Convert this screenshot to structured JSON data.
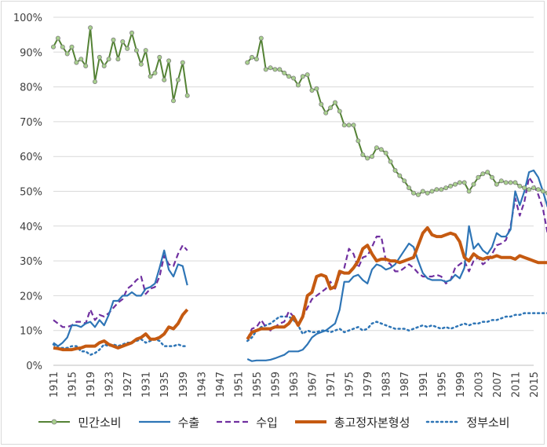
{
  "chart_data": {
    "type": "line",
    "ylim": [
      0,
      1.0
    ],
    "y_ticks": [
      "0%",
      "10%",
      "20%",
      "30%",
      "40%",
      "50%",
      "60%",
      "70%",
      "80%",
      "90%",
      "100%"
    ],
    "x_ticks": [
      "1911",
      "1915",
      "1919",
      "1923",
      "1927",
      "1931",
      "1935",
      "1939",
      "1943",
      "1947",
      "1951",
      "1955",
      "1959",
      "1963",
      "1967",
      "1971",
      "1975",
      "1979",
      "1983",
      "1987",
      "1991",
      "1995",
      "1999",
      "2003",
      "2007",
      "2011",
      "2015"
    ],
    "xlim": [
      1911,
      2015
    ],
    "grid": true,
    "legend_position": "bottom",
    "series": [
      {
        "name": "민간소비",
        "color": "#548235",
        "style": "solid-markers",
        "segments": [
          {
            "x0": 1911,
            "values": [
              0.915,
              0.94,
              0.915,
              0.895,
              0.915,
              0.87,
              0.88,
              0.86,
              0.97,
              0.815,
              0.885,
              0.86,
              0.88,
              0.935,
              0.88,
              0.93,
              0.91,
              0.955,
              0.905,
              0.865,
              0.905,
              0.83,
              0.84,
              0.885,
              0.82,
              0.875,
              0.76,
              0.82,
              0.87,
              0.775
            ]
          },
          {
            "x0": 1953,
            "values": [
              0.87,
              0.885,
              0.88,
              0.94,
              0.85,
              0.855,
              0.85,
              0.85,
              0.84,
              0.83,
              0.825,
              0.805,
              0.83,
              0.835,
              0.79,
              0.795,
              0.75,
              0.725,
              0.74,
              0.755,
              0.73,
              0.69,
              0.69,
              0.69,
              0.645,
              0.605,
              0.595,
              0.6,
              0.625,
              0.62,
              0.61,
              0.585,
              0.56,
              0.545,
              0.53,
              0.51,
              0.495,
              0.49,
              0.5,
              0.495,
              0.5,
              0.505,
              0.505,
              0.51,
              0.515,
              0.52,
              0.525,
              0.525,
              0.5,
              0.52,
              0.54,
              0.55,
              0.555,
              0.54,
              0.52,
              0.53,
              0.525,
              0.525,
              0.525,
              0.515,
              0.51,
              0.505,
              0.51,
              0.505,
              0.5,
              0.495
            ]
          }
        ]
      },
      {
        "name": "수출",
        "color": "#2e75b6",
        "style": "solid",
        "segments": [
          {
            "x0": 1911,
            "values": [
              0.065,
              0.055,
              0.065,
              0.08,
              0.115,
              0.115,
              0.11,
              0.12,
              0.125,
              0.11,
              0.13,
              0.115,
              0.145,
              0.185,
              0.185,
              0.2,
              0.2,
              0.21,
              0.2,
              0.2,
              0.22,
              0.225,
              0.235,
              0.28,
              0.33,
              0.275,
              0.255,
              0.29,
              0.285,
              0.23
            ]
          },
          {
            "x0": 1953,
            "values": [
              0.018,
              0.012,
              0.014,
              0.014,
              0.014,
              0.016,
              0.02,
              0.025,
              0.03,
              0.04,
              0.04,
              0.04,
              0.045,
              0.06,
              0.08,
              0.09,
              0.095,
              0.1,
              0.11,
              0.12,
              0.16,
              0.24,
              0.24,
              0.255,
              0.26,
              0.245,
              0.235,
              0.275,
              0.29,
              0.285,
              0.275,
              0.28,
              0.29,
              0.31,
              0.33,
              0.35,
              0.34,
              0.3,
              0.265,
              0.25,
              0.245,
              0.245,
              0.245,
              0.24,
              0.245,
              0.26,
              0.25,
              0.28,
              0.4,
              0.335,
              0.35,
              0.33,
              0.32,
              0.34,
              0.38,
              0.37,
              0.37,
              0.39,
              0.5,
              0.46,
              0.5,
              0.555,
              0.56,
              0.54,
              0.5,
              0.455
            ]
          }
        ]
      },
      {
        "name": "수입",
        "color": "#7030a0",
        "style": "dashed",
        "segments": [
          {
            "x0": 1911,
            "values": [
              0.13,
              0.12,
              0.11,
              0.11,
              0.115,
              0.125,
              0.125,
              0.12,
              0.16,
              0.13,
              0.145,
              0.14,
              0.15,
              0.165,
              0.18,
              0.19,
              0.22,
              0.23,
              0.245,
              0.255,
              0.205,
              0.22,
              0.225,
              0.255,
              0.315,
              0.29,
              0.285,
              0.32,
              0.345,
              0.33
            ]
          },
          {
            "x0": 1953,
            "values": [
              0.075,
              0.105,
              0.11,
              0.13,
              0.11,
              0.1,
              0.11,
              0.12,
              0.125,
              0.155,
              0.14,
              0.11,
              0.14,
              0.165,
              0.19,
              0.2,
              0.21,
              0.22,
              0.24,
              0.22,
              0.26,
              0.28,
              0.335,
              0.32,
              0.28,
              0.31,
              0.315,
              0.34,
              0.37,
              0.37,
              0.3,
              0.29,
              0.27,
              0.27,
              0.28,
              0.29,
              0.28,
              0.265,
              0.255,
              0.255,
              0.255,
              0.26,
              0.255,
              0.235,
              0.245,
              0.28,
              0.29,
              0.3,
              0.27,
              0.3,
              0.31,
              0.29,
              0.3,
              0.32,
              0.345,
              0.35,
              0.36,
              0.4,
              0.48,
              0.43,
              0.47,
              0.54,
              0.52,
              0.49,
              0.45,
              0.38
            ]
          }
        ]
      },
      {
        "name": "총고정자본형성",
        "color": "#c55a11",
        "style": "thick",
        "segments": [
          {
            "x0": 1911,
            "values": [
              0.05,
              0.048,
              0.045,
              0.045,
              0.045,
              0.048,
              0.05,
              0.055,
              0.055,
              0.055,
              0.065,
              0.07,
              0.06,
              0.055,
              0.05,
              0.055,
              0.06,
              0.065,
              0.075,
              0.08,
              0.09,
              0.075,
              0.075,
              0.08,
              0.09,
              0.11,
              0.105,
              0.12,
              0.145,
              0.16
            ]
          },
          {
            "x0": 1953,
            "values": [
              0.075,
              0.095,
              0.1,
              0.105,
              0.105,
              0.105,
              0.11,
              0.11,
              0.11,
              0.12,
              0.14,
              0.115,
              0.14,
              0.2,
              0.21,
              0.255,
              0.26,
              0.255,
              0.22,
              0.225,
              0.27,
              0.265,
              0.265,
              0.28,
              0.3,
              0.335,
              0.345,
              0.32,
              0.3,
              0.305,
              0.305,
              0.3,
              0.3,
              0.295,
              0.3,
              0.305,
              0.31,
              0.345,
              0.38,
              0.395,
              0.375,
              0.37,
              0.37,
              0.375,
              0.38,
              0.375,
              0.355,
              0.31,
              0.3,
              0.32,
              0.31,
              0.305,
              0.31,
              0.31,
              0.315,
              0.31,
              0.31,
              0.31,
              0.305,
              0.315,
              0.31,
              0.305,
              0.3,
              0.295,
              0.295,
              0.295
            ]
          }
        ]
      },
      {
        "name": "정부소비",
        "color": "#2e75b6",
        "style": "dotted",
        "segments": [
          {
            "x0": 1911,
            "values": [
              0.06,
              0.05,
              0.05,
              0.05,
              0.055,
              0.055,
              0.04,
              0.04,
              0.03,
              0.035,
              0.045,
              0.06,
              0.055,
              0.06,
              0.055,
              0.06,
              0.065,
              0.065,
              0.07,
              0.075,
              0.065,
              0.07,
              0.075,
              0.07,
              0.055,
              0.055,
              0.055,
              0.06,
              0.055,
              0.055
            ]
          },
          {
            "x0": 1953,
            "values": [
              0.07,
              0.08,
              0.1,
              0.11,
              0.115,
              0.12,
              0.13,
              0.14,
              0.14,
              0.14,
              0.13,
              0.115,
              0.09,
              0.1,
              0.095,
              0.095,
              0.1,
              0.1,
              0.095,
              0.1,
              0.105,
              0.095,
              0.1,
              0.105,
              0.11,
              0.1,
              0.105,
              0.12,
              0.125,
              0.12,
              0.115,
              0.11,
              0.105,
              0.105,
              0.105,
              0.1,
              0.105,
              0.11,
              0.115,
              0.11,
              0.115,
              0.11,
              0.105,
              0.11,
              0.105,
              0.11,
              0.115,
              0.12,
              0.115,
              0.12,
              0.12,
              0.125,
              0.125,
              0.13,
              0.13,
              0.135,
              0.14,
              0.14,
              0.145,
              0.145,
              0.15,
              0.15,
              0.15,
              0.15,
              0.15,
              0.15
            ]
          }
        ]
      }
    ]
  }
}
